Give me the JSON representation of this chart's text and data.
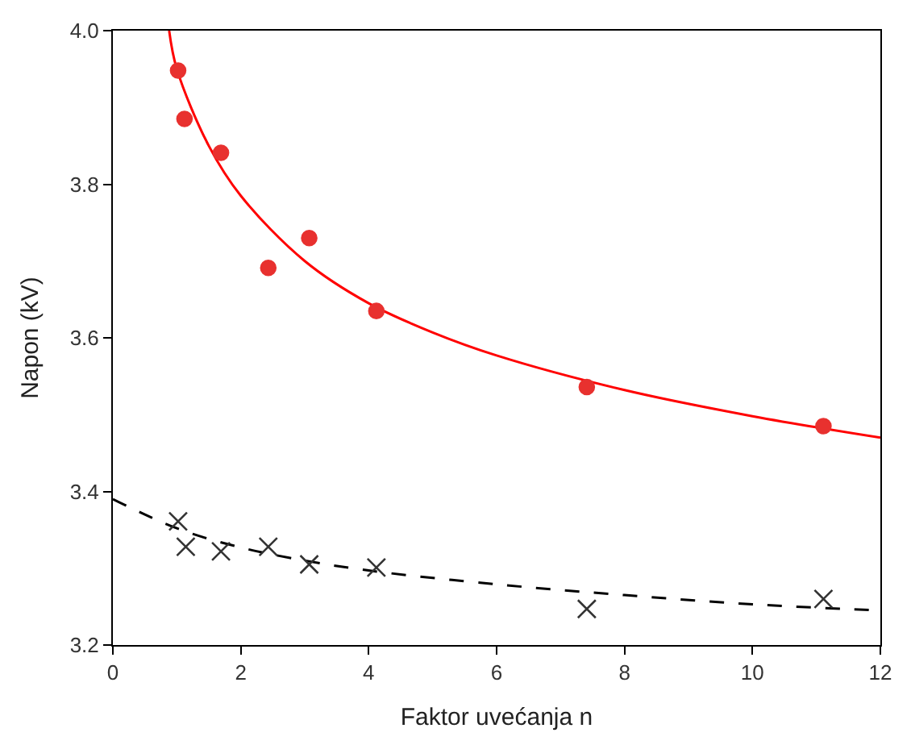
{
  "chart_data": {
    "type": "scatter",
    "xlabel": "Faktor uvećanja n",
    "ylabel": "Napon (kV)",
    "xlim": [
      0,
      12
    ],
    "ylim": [
      3.2,
      4.0
    ],
    "xticks": [
      0,
      2,
      4,
      6,
      8,
      10,
      12
    ],
    "yticks": [
      3.2,
      3.4,
      3.6,
      3.8,
      {
        "value": 4,
        "label": "4.0"
      }
    ],
    "series": [
      {
        "type": "line",
        "color": "#ff0000",
        "line_style": "solid",
        "marker": "none",
        "x": [
          0.88,
          1,
          1.5,
          2,
          3,
          4,
          5,
          6,
          8,
          10,
          12
        ],
        "values": [
          4.0,
          3.95,
          3.85,
          3.785,
          3.7,
          3.645,
          3.607,
          3.577,
          3.532,
          3.498,
          3.47
        ]
      },
      {
        "type": "line",
        "color": "#000000",
        "line_style": "dashed",
        "marker": "none",
        "x": [
          0,
          1,
          2,
          3,
          4,
          6,
          8,
          10,
          12
        ],
        "values": [
          3.39,
          3.352,
          3.327,
          3.31,
          3.297,
          3.279,
          3.265,
          3.253,
          3.245
        ]
      },
      {
        "color": "#e8312f",
        "marker": "circle",
        "x": [
          1.02,
          1.12,
          1.69,
          2.43,
          3.07,
          4.12,
          7.41,
          11.11
        ],
        "values": [
          3.948,
          3.885,
          3.841,
          3.691,
          3.73,
          3.635,
          3.536,
          3.485
        ]
      },
      {
        "color": "#333333",
        "marker": "cross",
        "x": [
          1.02,
          1.14,
          1.69,
          2.43,
          3.07,
          4.12,
          7.41,
          11.11
        ],
        "values": [
          3.361,
          3.328,
          3.322,
          3.328,
          3.305,
          3.301,
          3.247,
          3.26
        ]
      }
    ]
  }
}
